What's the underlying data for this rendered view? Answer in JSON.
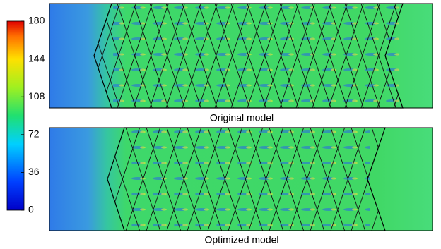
{
  "chart_data": {
    "type": "heatmap",
    "clim": [
      0,
      180
    ],
    "cticks": [
      0,
      36,
      72,
      108,
      144,
      180
    ],
    "panels": [
      {
        "label": "Original model"
      },
      {
        "label": "Optimized model"
      }
    ]
  }
}
